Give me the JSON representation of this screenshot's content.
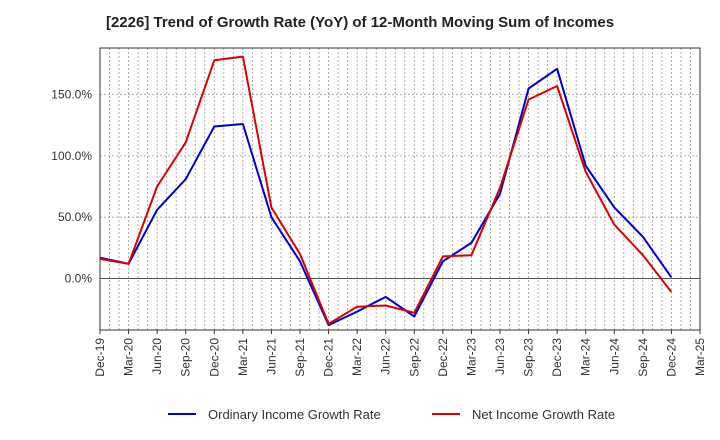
{
  "chart_data": {
    "type": "line",
    "title": "[2226]  Trend of Growth Rate (YoY) of 12-Month Moving Sum of Incomes",
    "x_categories": [
      "Dec-19",
      "Jan-20",
      "Feb-20",
      "Mar-20",
      "Apr-20",
      "May-20",
      "Jun-20",
      "Jul-20",
      "Aug-20",
      "Sep-20",
      "Oct-20",
      "Nov-20",
      "Dec-20",
      "Jan-21",
      "Feb-21",
      "Mar-21",
      "Apr-21",
      "May-21",
      "Jun-21",
      "Jul-21",
      "Aug-21",
      "Sep-21",
      "Oct-21",
      "Nov-21",
      "Dec-21",
      "Jan-22",
      "Feb-22",
      "Mar-22",
      "Apr-22",
      "May-22",
      "Jun-22",
      "Jul-22",
      "Aug-22",
      "Sep-22",
      "Oct-22",
      "Nov-22",
      "Dec-22",
      "Jan-23",
      "Feb-23",
      "Mar-23",
      "Apr-23",
      "May-23",
      "Jun-23",
      "Jul-23",
      "Aug-23",
      "Sep-23",
      "Oct-23",
      "Nov-23",
      "Dec-23",
      "Jan-24",
      "Feb-24",
      "Mar-24",
      "Apr-24",
      "May-24",
      "Jun-24",
      "Jul-24",
      "Aug-24",
      "Sep-24",
      "Oct-24",
      "Nov-24",
      "Dec-24",
      "Jan-25",
      "Feb-25",
      "Mar-25"
    ],
    "x_tick_labels": [
      "Dec-19",
      "Mar-20",
      "Jun-20",
      "Sep-20",
      "Dec-20",
      "Mar-21",
      "Jun-21",
      "Sep-21",
      "Dec-21",
      "Mar-22",
      "Jun-22",
      "Sep-22",
      "Dec-22",
      "Mar-23",
      "Jun-23",
      "Sep-23",
      "Dec-23",
      "Mar-24",
      "Jun-24",
      "Sep-24",
      "Dec-24",
      "Mar-25"
    ],
    "y_tick_labels": [
      "0.0%",
      "50.0%",
      "100.0%",
      "150.0%"
    ],
    "y_ticks": [
      0,
      50,
      100,
      150
    ],
    "ylim": [
      -42,
      188
    ],
    "grid": true,
    "legend_position": "bottom",
    "series": [
      {
        "name": "Ordinary Income Growth Rate",
        "color": "#0000cc",
        "points": [
          [
            "Dec-19",
            17
          ],
          [
            "Mar-20",
            12
          ],
          [
            "Jun-20",
            56
          ],
          [
            "Sep-20",
            81
          ],
          [
            "Dec-20",
            124
          ],
          [
            "Mar-21",
            126
          ],
          [
            "Jun-21",
            50
          ],
          [
            "Sep-21",
            14
          ],
          [
            "Dec-21",
            -38
          ],
          [
            "Mar-22",
            -27
          ],
          [
            "Jun-22",
            -15
          ],
          [
            "Sep-22",
            -31
          ],
          [
            "Dec-22",
            14
          ],
          [
            "Mar-23",
            29
          ],
          [
            "Jun-23",
            69
          ],
          [
            "Sep-23",
            155
          ],
          [
            "Dec-23",
            171
          ],
          [
            "Mar-24",
            92
          ],
          [
            "Jun-24",
            58
          ],
          [
            "Sep-24",
            34
          ],
          [
            "Dec-24",
            1
          ]
        ]
      },
      {
        "name": "Net Income Growth Rate",
        "color": "#dd0000",
        "points": [
          [
            "Dec-19",
            16
          ],
          [
            "Mar-20",
            12
          ],
          [
            "Jun-20",
            75
          ],
          [
            "Sep-20",
            111
          ],
          [
            "Dec-20",
            178
          ],
          [
            "Mar-21",
            181
          ],
          [
            "Jun-21",
            58
          ],
          [
            "Sep-21",
            20
          ],
          [
            "Dec-21",
            -37
          ],
          [
            "Mar-22",
            -23
          ],
          [
            "Jun-22",
            -22
          ],
          [
            "Sep-22",
            -28
          ],
          [
            "Dec-22",
            18
          ],
          [
            "Mar-23",
            19
          ],
          [
            "Jun-23",
            74
          ],
          [
            "Sep-23",
            146
          ],
          [
            "Dec-23",
            157
          ],
          [
            "Mar-24",
            87
          ],
          [
            "Jun-24",
            44
          ],
          [
            "Sep-24",
            19
          ],
          [
            "Dec-24",
            -11
          ]
        ]
      }
    ]
  }
}
